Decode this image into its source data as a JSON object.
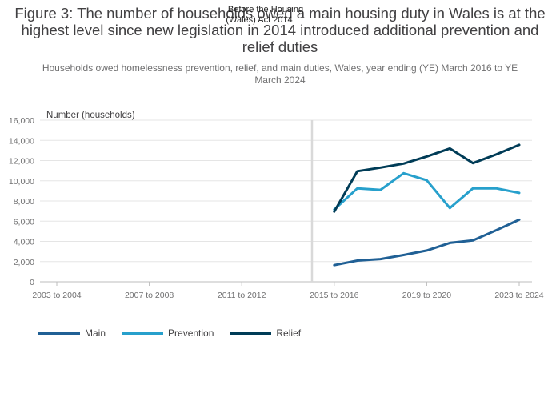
{
  "title": "Figure 3: The number of households owed a main housing duty in Wales is at the highest level since new legislation in 2014 introduced additional prevention and relief duties",
  "subtitle": "Households owed homelessness prevention, relief, and main duties, Wales, year ending (YE) March 2016 to YE March 2024",
  "chart_data": {
    "type": "line",
    "ylabel": "Number (households)",
    "ylim": [
      0,
      16000
    ],
    "yticks": [
      "0",
      "2,000",
      "4,000",
      "6,000",
      "8,000",
      "10,000",
      "12,000",
      "14,000",
      "16,000"
    ],
    "xticks": [
      "2003 to 2004",
      "2007 to 2008",
      "2011 to 2012",
      "2015 to 2016",
      "2019 to 2020",
      "2023 to 2024"
    ],
    "annotation": {
      "line1": "Before the Housing",
      "line2": "(Wales) Act 2014"
    },
    "grid": true,
    "legend_position": "bottom-left",
    "x": [
      "2015 to 2016",
      "2016 to 2017",
      "2017 to 2018",
      "2018 to 2019",
      "2019 to 2020",
      "2020 to 2021",
      "2021 to 2022",
      "2022 to 2023",
      "2023 to 2024"
    ],
    "series": [
      {
        "name": "Main",
        "color": "#206095",
        "values": [
          1650,
          2100,
          2250,
          2650,
          3100,
          3850,
          4100,
          5100,
          6150
        ]
      },
      {
        "name": "Prevention",
        "color": "#27a0cc",
        "values": [
          7150,
          9250,
          9100,
          10750,
          10050,
          7300,
          9250,
          9250,
          8800
        ]
      },
      {
        "name": "Relief",
        "color": "#003c57",
        "values": [
          6950,
          10950,
          11300,
          11700,
          12400,
          13200,
          11750,
          12600,
          13550
        ]
      }
    ]
  }
}
